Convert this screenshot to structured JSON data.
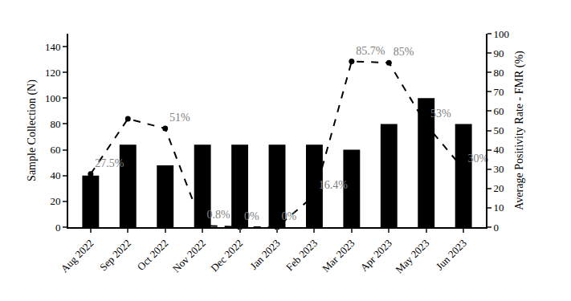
{
  "chart_data": {
    "type": "bar",
    "categories": [
      "Aug 2022",
      "Sep 2022",
      "Oct 2022",
      "Nov 2022",
      "Dec 2022",
      "Jan 2023",
      "Feb 2023",
      "Mar 2023",
      "Apr 2023",
      "May 2023",
      "Jun 2023"
    ],
    "y_label": "Sample Collection (N)",
    "y2_label": "Average Positivity Rate - FMR (%)",
    "ylim": [
      0,
      150
    ],
    "yticks": [
      0,
      20,
      40,
      60,
      80,
      100,
      120,
      140
    ],
    "y2lim": [
      0,
      100
    ],
    "y2ticks": [
      0,
      10,
      20,
      30,
      40,
      50,
      60,
      70,
      80,
      90,
      100
    ],
    "grid": false,
    "series": [
      {
        "type": "bar",
        "color": "#000000",
        "values": [
          40,
          64,
          48,
          64,
          64,
          64,
          64,
          60,
          80,
          100,
          80
        ]
      },
      {
        "type": "line",
        "axis": "y2",
        "color": "#000000",
        "line_style": "dashed",
        "marker": "circle",
        "data_labels": true,
        "values": [
          27.5,
          56,
          51,
          0.8,
          0,
          0,
          16.4,
          85.7,
          85,
          53,
          30
        ],
        "value_labels": [
          "27.5%",
          null,
          "51%",
          "0.8%",
          "0%",
          "0%",
          "16.4%",
          "85.7%",
          "85%",
          "53%",
          "30%"
        ]
      }
    ]
  }
}
